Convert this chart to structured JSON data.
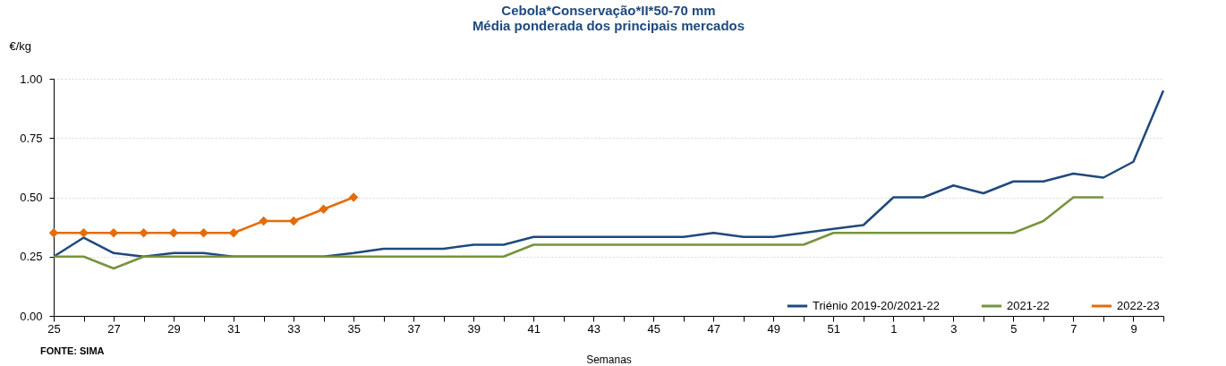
{
  "chart_data": {
    "type": "line",
    "title": "Cebola*Conservação*II*50-70 mm",
    "subtitle": "Média ponderada dos principais mercados",
    "xlabel": "Semanas",
    "ylabel": "€/kg",
    "categories": [
      "25",
      null,
      "27",
      null,
      "29",
      null,
      "31",
      null,
      "33",
      null,
      "35",
      null,
      "37",
      null,
      "39",
      null,
      "41",
      null,
      "43",
      null,
      "45",
      null,
      "47",
      null,
      "49",
      null,
      "51",
      null,
      "1",
      null,
      "3",
      null,
      "5",
      null,
      "7",
      null,
      "9",
      null
    ],
    "series": [
      {
        "name": "Triénio 2019-20/2021-22",
        "color": "#1f497d",
        "values": [
          0.25,
          0.33,
          0.265,
          0.25,
          0.265,
          0.265,
          0.25,
          0.25,
          0.25,
          0.25,
          0.265,
          0.283,
          0.283,
          0.283,
          0.3,
          0.3,
          0.333,
          0.333,
          0.333,
          0.333,
          0.333,
          0.333,
          0.35,
          0.333,
          0.333,
          0.35,
          0.367,
          0.383,
          0.5,
          0.5,
          0.55,
          0.517,
          0.567,
          0.567,
          0.6,
          0.583,
          0.65,
          0.95
        ]
      },
      {
        "name": "2021-22",
        "color": "#77933c",
        "values": [
          0.25,
          0.25,
          0.2,
          0.25,
          0.25,
          0.25,
          0.25,
          0.25,
          0.25,
          0.25,
          0.25,
          0.25,
          0.25,
          0.25,
          0.25,
          0.25,
          0.3,
          0.3,
          0.3,
          0.3,
          0.3,
          0.3,
          0.3,
          0.3,
          0.3,
          0.3,
          0.35,
          0.35,
          0.35,
          0.35,
          0.35,
          0.35,
          0.35,
          0.4,
          0.5,
          0.5,
          null,
          null
        ]
      },
      {
        "name": "2022-23",
        "color": "#e46c0a",
        "marker": "diamond",
        "values": [
          0.35,
          0.35,
          0.35,
          0.35,
          0.35,
          0.35,
          0.35,
          0.4,
          0.4,
          0.45,
          0.5,
          null,
          null,
          null,
          null,
          null,
          null,
          null,
          null,
          null,
          null,
          null,
          null,
          null,
          null,
          null,
          null,
          null,
          null,
          null,
          null,
          null,
          null,
          null,
          null,
          null,
          null,
          null
        ]
      }
    ],
    "ylim": [
      0,
      1
    ],
    "yticks": [
      {
        "value": 0,
        "label": "0.00"
      },
      {
        "value": 0.25,
        "label": "0.25"
      },
      {
        "value": 0.5,
        "label": "0.50"
      },
      {
        "value": 0.75,
        "label": "0.75"
      },
      {
        "value": 1,
        "label": "1.00"
      }
    ],
    "grid": "y",
    "legend": "bottom right",
    "line_style": "solid",
    "annotations": [
      "FONTE: SIMA"
    ]
  }
}
